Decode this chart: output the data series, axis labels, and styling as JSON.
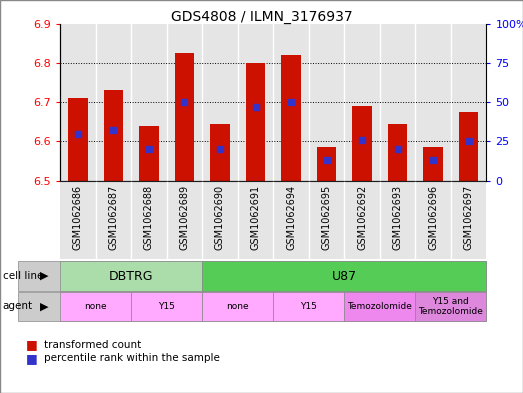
{
  "title": "GDS4808 / ILMN_3176937",
  "samples": [
    "GSM1062686",
    "GSM1062687",
    "GSM1062688",
    "GSM1062689",
    "GSM1062690",
    "GSM1062691",
    "GSM1062694",
    "GSM1062695",
    "GSM1062692",
    "GSM1062693",
    "GSM1062696",
    "GSM1062697"
  ],
  "transformed_count": [
    6.71,
    6.73,
    6.64,
    6.825,
    6.645,
    6.8,
    6.82,
    6.585,
    6.69,
    6.645,
    6.585,
    6.675
  ],
  "percentile_rank": [
    30,
    32,
    20,
    50,
    20,
    47,
    50,
    13,
    26,
    20,
    13,
    25
  ],
  "ymin": 6.5,
  "ymax": 6.9,
  "yright_min": 0,
  "yright_max": 100,
  "yticks_left": [
    6.5,
    6.6,
    6.7,
    6.8,
    6.9
  ],
  "yticks_right": [
    0,
    25,
    50,
    75,
    100
  ],
  "bar_color": "#cc1100",
  "dot_color": "#3333cc",
  "cell_spans": [
    {
      "label": "DBTRG",
      "n_cols": 4,
      "color": "#aaddaa"
    },
    {
      "label": "U87",
      "n_cols": 8,
      "color": "#55cc55"
    }
  ],
  "agent_spans": [
    {
      "label": "none",
      "n_cols": 2,
      "color": "#ffaaff"
    },
    {
      "label": "Y15",
      "n_cols": 2,
      "color": "#ffaaff"
    },
    {
      "label": "none",
      "n_cols": 2,
      "color": "#ffaaff"
    },
    {
      "label": "Y15",
      "n_cols": 2,
      "color": "#ffaaff"
    },
    {
      "label": "Temozolomide",
      "n_cols": 2,
      "color": "#ee88ee"
    },
    {
      "label": "Y15 and\nTemozolomide",
      "n_cols": 2,
      "color": "#dd88dd"
    }
  ],
  "legend_count_label": "transformed count",
  "legend_pct_label": "percentile rank within the sample",
  "cell_line_label": "cell line",
  "agent_label": "agent",
  "fig_border_color": "#888888"
}
